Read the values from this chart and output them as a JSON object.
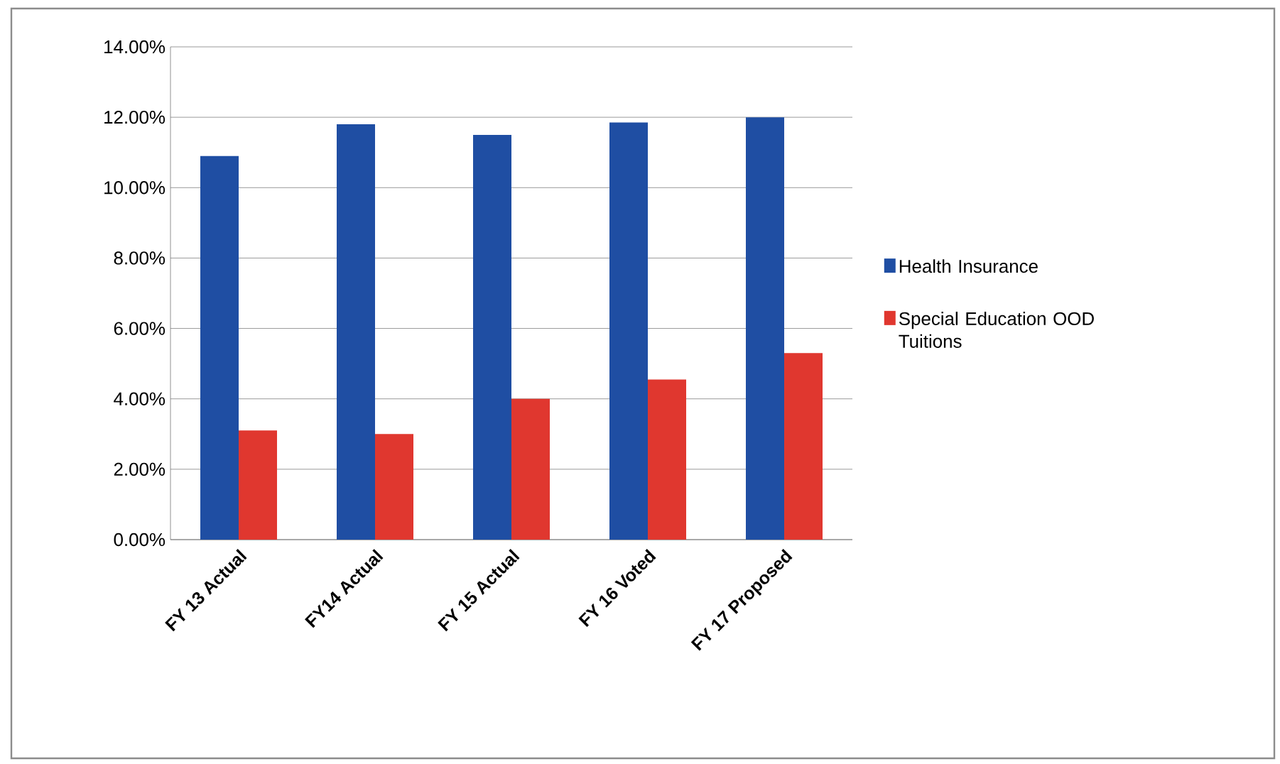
{
  "chart_data": {
    "type": "bar",
    "categories": [
      "FY 13 Actual",
      "FY14 Actual",
      "FY 15 Actual",
      "FY 16 Voted",
      "FY 17 Proposed"
    ],
    "series": [
      {
        "name": "Health Insurance",
        "color": "#1f4ea3",
        "values": [
          10.9,
          11.8,
          11.5,
          11.85,
          12.0
        ]
      },
      {
        "name": "Special Education OOD Tuitions",
        "color": "#e0372f",
        "values": [
          3.1,
          3.0,
          4.0,
          4.55,
          5.3
        ]
      }
    ],
    "ylim": [
      0,
      14
    ],
    "yticks": [
      {
        "value": 0,
        "label": "0.00%"
      },
      {
        "value": 2,
        "label": "2.00%"
      },
      {
        "value": 4,
        "label": "4.00%"
      },
      {
        "value": 6,
        "label": "6.00%"
      },
      {
        "value": 8,
        "label": "8.00%"
      },
      {
        "value": 10,
        "label": "10.00%"
      },
      {
        "value": 12,
        "label": "12.00%"
      },
      {
        "value": 14,
        "label": "14.00%"
      }
    ],
    "grid": "y",
    "legend": "right"
  }
}
